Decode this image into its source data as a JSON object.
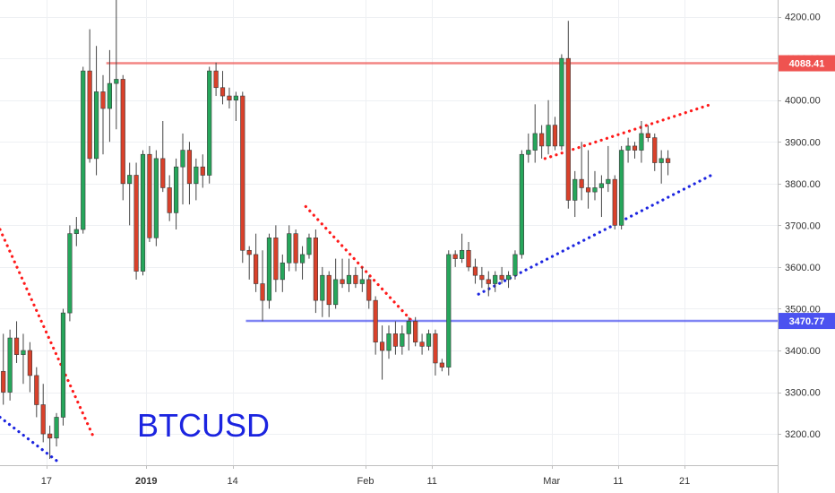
{
  "chart_data": {
    "type": "candlestick",
    "symbol": "BTCUSD",
    "y_axis": {
      "ylim": [
        3125,
        4240
      ],
      "ticks": [
        3200,
        3300,
        3400,
        3500,
        3600,
        3700,
        3800,
        3900,
        4000,
        4100,
        4200
      ],
      "tick_labels": [
        "3200.00",
        "3300.00",
        "3400.00",
        "3500.00",
        "3600.00",
        "3700.00",
        "3800.00",
        "3900.00",
        "4000.00",
        "4100.00",
        "4200.00"
      ],
      "position": "right"
    },
    "x_axis": {
      "bar_range": [
        -6,
        111
      ],
      "ticks": [
        {
          "bar": 1,
          "label": "17",
          "bold": false
        },
        {
          "bar": 16,
          "label": "2019",
          "bold": true
        },
        {
          "bar": 29,
          "label": "14",
          "bold": false
        },
        {
          "bar": 49,
          "label": "Feb",
          "bold": false
        },
        {
          "bar": 59,
          "label": "11",
          "bold": false
        },
        {
          "bar": 77,
          "label": "Mar",
          "bold": false
        },
        {
          "bar": 87,
          "label": "11",
          "bold": false
        },
        {
          "bar": 97,
          "label": "21",
          "bold": false
        }
      ]
    },
    "candles": [
      [
        3350,
        3440,
        3270,
        3300
      ],
      [
        3300,
        3450,
        3280,
        3430
      ],
      [
        3430,
        3470,
        3370,
        3390
      ],
      [
        3390,
        3440,
        3320,
        3400
      ],
      [
        3400,
        3420,
        3300,
        3340
      ],
      [
        3340,
        3360,
        3240,
        3270
      ],
      [
        3270,
        3320,
        3180,
        3200
      ],
      [
        3200,
        3220,
        3140,
        3190
      ],
      [
        3190,
        3250,
        3170,
        3240
      ],
      [
        3240,
        3500,
        3220,
        3490
      ],
      [
        3490,
        3700,
        3470,
        3680
      ],
      [
        3680,
        3720,
        3650,
        3690
      ],
      [
        3690,
        4080,
        3680,
        4070
      ],
      [
        4070,
        4170,
        3850,
        3860
      ],
      [
        3860,
        4130,
        3820,
        4020
      ],
      [
        4020,
        4060,
        3870,
        3980
      ],
      [
        3980,
        4120,
        3900,
        4040
      ],
      [
        4040,
        4240,
        3930,
        4050
      ],
      [
        4050,
        4060,
        3760,
        3800
      ],
      [
        3800,
        3850,
        3700,
        3820
      ],
      [
        3820,
        3850,
        3570,
        3590
      ],
      [
        3590,
        3880,
        3580,
        3870
      ],
      [
        3870,
        3890,
        3660,
        3670
      ],
      [
        3670,
        3880,
        3650,
        3860
      ],
      [
        3860,
        3950,
        3780,
        3790
      ],
      [
        3790,
        3820,
        3710,
        3730
      ],
      [
        3730,
        3860,
        3690,
        3840
      ],
      [
        3840,
        3920,
        3750,
        3880
      ],
      [
        3880,
        3900,
        3750,
        3800
      ],
      [
        3800,
        3860,
        3760,
        3840
      ],
      [
        3840,
        3870,
        3790,
        3820
      ],
      [
        3820,
        4080,
        3800,
        4070
      ],
      [
        4070,
        4090,
        4010,
        4030
      ],
      [
        4030,
        4070,
        3990,
        4010
      ],
      [
        4010,
        4030,
        3980,
        4000
      ],
      [
        4000,
        4020,
        3950,
        4010
      ],
      [
        4010,
        4020,
        3610,
        3640
      ],
      [
        3640,
        3650,
        3570,
        3630
      ],
      [
        3630,
        3680,
        3540,
        3560
      ],
      [
        3560,
        3640,
        3470,
        3520
      ],
      [
        3520,
        3680,
        3500,
        3670
      ],
      [
        3670,
        3700,
        3540,
        3570
      ],
      [
        3570,
        3630,
        3540,
        3610
      ],
      [
        3610,
        3700,
        3590,
        3680
      ],
      [
        3680,
        3690,
        3590,
        3610
      ],
      [
        3610,
        3650,
        3570,
        3630
      ],
      [
        3630,
        3680,
        3620,
        3670
      ],
      [
        3670,
        3690,
        3490,
        3520
      ],
      [
        3520,
        3600,
        3480,
        3580
      ],
      [
        3580,
        3590,
        3480,
        3510
      ],
      [
        3510,
        3620,
        3500,
        3570
      ],
      [
        3570,
        3620,
        3550,
        3560
      ],
      [
        3560,
        3620,
        3540,
        3580
      ],
      [
        3580,
        3600,
        3550,
        3560
      ],
      [
        3560,
        3600,
        3540,
        3570
      ],
      [
        3570,
        3580,
        3500,
        3520
      ],
      [
        3520,
        3530,
        3390,
        3420
      ],
      [
        3420,
        3460,
        3330,
        3400
      ],
      [
        3400,
        3460,
        3380,
        3440
      ],
      [
        3440,
        3470,
        3390,
        3410
      ],
      [
        3410,
        3460,
        3390,
        3440
      ],
      [
        3440,
        3480,
        3400,
        3470
      ],
      [
        3470,
        3480,
        3410,
        3420
      ],
      [
        3420,
        3440,
        3390,
        3410
      ],
      [
        3410,
        3450,
        3400,
        3440
      ],
      [
        3440,
        3450,
        3340,
        3370
      ],
      [
        3370,
        3380,
        3350,
        3360
      ],
      [
        3360,
        3640,
        3340,
        3630
      ],
      [
        3630,
        3640,
        3600,
        3620
      ],
      [
        3620,
        3680,
        3610,
        3640
      ],
      [
        3640,
        3660,
        3590,
        3600
      ],
      [
        3600,
        3620,
        3560,
        3580
      ],
      [
        3580,
        3600,
        3550,
        3570
      ],
      [
        3570,
        3590,
        3530,
        3560
      ],
      [
        3560,
        3590,
        3540,
        3580
      ],
      [
        3580,
        3600,
        3560,
        3570
      ],
      [
        3570,
        3590,
        3550,
        3580
      ],
      [
        3580,
        3640,
        3570,
        3630
      ],
      [
        3630,
        3880,
        3620,
        3870
      ],
      [
        3870,
        3920,
        3850,
        3880
      ],
      [
        3880,
        3990,
        3850,
        3920
      ],
      [
        3920,
        3940,
        3860,
        3890
      ],
      [
        3890,
        4000,
        3870,
        3940
      ],
      [
        3940,
        3960,
        3880,
        3890
      ],
      [
        3890,
        4110,
        3880,
        4100
      ],
      [
        4100,
        4190,
        3740,
        3760
      ],
      [
        3760,
        3830,
        3720,
        3810
      ],
      [
        3810,
        3900,
        3760,
        3790
      ],
      [
        3790,
        3880,
        3740,
        3780
      ],
      [
        3780,
        3830,
        3760,
        3790
      ],
      [
        3790,
        3820,
        3720,
        3800
      ],
      [
        3800,
        3890,
        3780,
        3810
      ],
      [
        3810,
        3820,
        3690,
        3700
      ],
      [
        3700,
        3890,
        3690,
        3880
      ],
      [
        3880,
        3910,
        3850,
        3890
      ],
      [
        3890,
        3900,
        3860,
        3880
      ],
      [
        3880,
        3950,
        3850,
        3920
      ],
      [
        3920,
        3940,
        3900,
        3910
      ],
      [
        3910,
        3920,
        3830,
        3850
      ],
      [
        3850,
        3880,
        3800,
        3860
      ],
      [
        3860,
        3880,
        3820,
        3850
      ]
    ],
    "horizontal_lines": [
      {
        "price": 4088.41,
        "label": "4088.41",
        "color": "#ef5350",
        "start_bar": 10
      },
      {
        "price": 3470.77,
        "label": "3470.77",
        "color": "#4b52f0",
        "start_bar": 31
      }
    ],
    "trendlines": [
      {
        "color": "#ff1a1a",
        "points": [
          [
            -6,
            3690
          ],
          [
            8,
            3195
          ]
        ]
      },
      {
        "color": "#1b24e0",
        "points": [
          [
            -6,
            3240
          ],
          [
            3,
            3130
          ]
        ]
      },
      {
        "color": "#ff1a1a",
        "points": [
          [
            40,
            3745
          ],
          [
            56,
            3470
          ]
        ]
      },
      {
        "color": "#1b24e0",
        "points": [
          [
            66,
            3535
          ],
          [
            101,
            3820
          ]
        ]
      },
      {
        "color": "#ff1a1a",
        "points": [
          [
            76,
            3860
          ],
          [
            101,
            3990
          ]
        ]
      }
    ],
    "colors": {
      "up_candle": "#26a65b",
      "down_candle": "#d9412b",
      "wick": "#444444",
      "grid": "#eef0f3",
      "axis_border": "#bfbfbf",
      "axis_text": "#333333"
    },
    "grid": true
  }
}
